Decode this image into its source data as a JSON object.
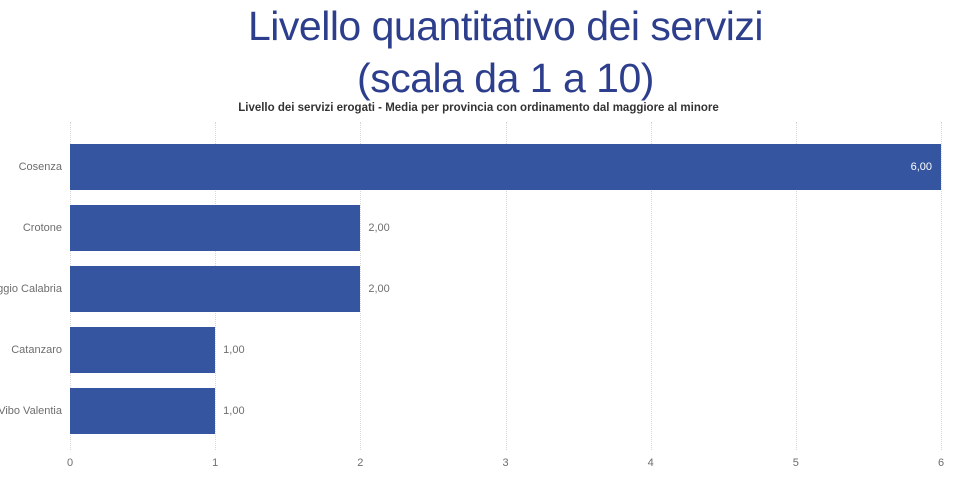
{
  "colors": {
    "bar": "#3555a0",
    "report_title": "#2d3e8c",
    "chart_title": "#333333",
    "axis_label": "#6e6e6e",
    "gridline": "#d6d6d6",
    "data_label_inside": "#ffffff",
    "data_label_outside": "#6e6e6e"
  },
  "report_title": {
    "line1": "Livello quantitativo dei servizi",
    "line2": "(scala da 1 a 10)"
  },
  "chart_data": {
    "type": "bar",
    "orientation": "horizontal",
    "title": "Livello dei servizi erogati - Media per provincia con ordinamento dal maggiore al minore",
    "categories": [
      "Cosenza",
      "Crotone",
      "Reggio Calabria",
      "Catanzaro",
      "Vibo Valentia"
    ],
    "values": [
      6,
      2,
      2,
      1,
      1
    ],
    "value_labels": [
      "6,00",
      "2,00",
      "2,00",
      "1,00",
      "1,00"
    ],
    "sort": "descending by value",
    "xlabel": "",
    "ylabel": "",
    "xlim": [
      0,
      6
    ],
    "x_ticks": [
      "0",
      "1",
      "2",
      "3",
      "4",
      "5",
      "6"
    ],
    "grid": "vertical dotted gridlines",
    "legend": "none",
    "data_labels": "shown, inside bar when it reaches plot edge, otherwise outside"
  }
}
